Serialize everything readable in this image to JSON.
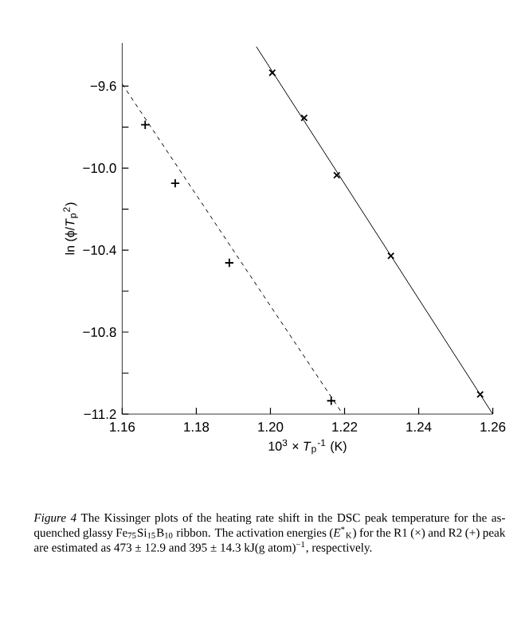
{
  "chart_data": {
    "type": "scatter",
    "xlabel": "10$^{3}$ × *T*$_{p}$$^{-1}$ (K)",
    "ylabel": "ln (ϕ/*T*$_{p}$$^{2}$)",
    "xlim": [
      1.16,
      1.26
    ],
    "ylim": [
      -11.2,
      -9.39
    ],
    "xticks": [
      {
        "value": 1.16,
        "label": "1.16"
      },
      {
        "value": 1.18,
        "label": "1.18"
      },
      {
        "value": 1.2,
        "label": "1.20"
      },
      {
        "value": 1.22,
        "label": "1.22"
      },
      {
        "value": 1.24,
        "label": "1.24"
      },
      {
        "value": 1.26,
        "label": "1.26"
      }
    ],
    "yticks": [
      {
        "value": -9.6,
        "label": "−9.6"
      },
      {
        "value": -9.8,
        "label": null
      },
      {
        "value": -10.0,
        "label": "−10.0"
      },
      {
        "value": -10.2,
        "label": null
      },
      {
        "value": -10.4,
        "label": "−10.4"
      },
      {
        "value": -10.6,
        "label": null
      },
      {
        "value": -10.8,
        "label": "−10.8"
      },
      {
        "value": -11.0,
        "label": null
      },
      {
        "value": -11.2,
        "label": "−11.2"
      }
    ],
    "grid": false,
    "series": [
      {
        "marker": "cross",
        "color": "#000000",
        "x": [
          1.2005,
          1.2091,
          1.2179,
          1.2325,
          1.2566
        ],
        "values": [
          -9.535,
          -9.755,
          -10.035,
          -10.428,
          -11.104
        ]
      },
      {
        "marker": "plus",
        "color": "#000000",
        "x": [
          1.1662,
          1.1743,
          1.1889,
          1.2164
        ],
        "values": [
          -9.789,
          -10.074,
          -10.462,
          -11.135
        ]
      },
      {
        "type": "line",
        "marker": "none",
        "line_style": "solid",
        "color": "#000000",
        "x": [
          1.1962,
          1.26
        ],
        "values": [
          -9.408,
          -11.2
        ]
      },
      {
        "type": "line",
        "marker": "none",
        "line_style": "dashed",
        "color": "#000000",
        "x": [
          1.16,
          1.2195
        ],
        "values": [
          -9.59,
          -11.2
        ]
      }
    ],
    "annotations": [
      "*Figure 4* The Kissinger plots of the heating rate shift in the DSC peak temperature for the as-quenched glassy Fe$_{75}$Si$_{15}$B$_{10}$ ribbon. The activation energies (*E*$^{*}$$_{K}$) for the R1 (×) and R2 (+) peak are estimated as 473 ± 12.9 and 395 ± 14.3 kJ(g atom)$^{−1}$, respectively."
    ]
  }
}
